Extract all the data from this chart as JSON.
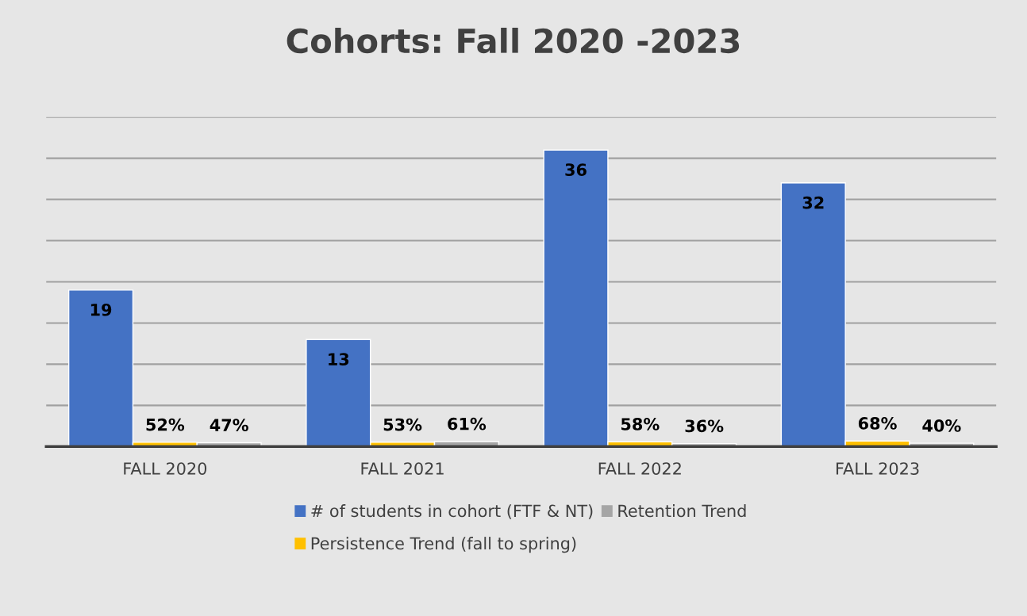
{
  "chart_data": {
    "type": "bar",
    "title": "Cohorts: Fall 2020 -2023",
    "categories": [
      "FALL 2020",
      "FALL 2021",
      "FALL 2022",
      "FALL 2023"
    ],
    "series": [
      {
        "name": "# of students in cohort (FTF & NT)",
        "color": "#4472c4",
        "values": [
          19,
          13,
          36,
          32
        ],
        "value_labels": [
          "19",
          "13",
          "36",
          "32"
        ]
      },
      {
        "name": "Persistence Trend (fall to spring)",
        "color": "#ffc000",
        "values": [
          0.52,
          0.53,
          0.58,
          0.68
        ],
        "value_labels": [
          "52%",
          "53%",
          "58%",
          "68%"
        ]
      },
      {
        "name": "Retention Trend",
        "color": "#a5a5a5",
        "values": [
          0.47,
          0.61,
          0.36,
          0.4
        ],
        "value_labels": [
          "47%",
          "61%",
          "36%",
          "40%"
        ]
      }
    ],
    "ylim": [
      0,
      40
    ],
    "yticks": [
      {
        "value": 0,
        "label": null
      },
      {
        "value": 5,
        "label": null
      },
      {
        "value": 10,
        "label": null
      },
      {
        "value": 15,
        "label": null
      },
      {
        "value": 20,
        "label": null
      },
      {
        "value": 25,
        "label": null
      },
      {
        "value": 30,
        "label": null
      },
      {
        "value": 35,
        "label": null
      },
      {
        "value": 40,
        "label": null
      }
    ],
    "tick_labels": "x",
    "grid": "y",
    "legend": "bottom"
  }
}
